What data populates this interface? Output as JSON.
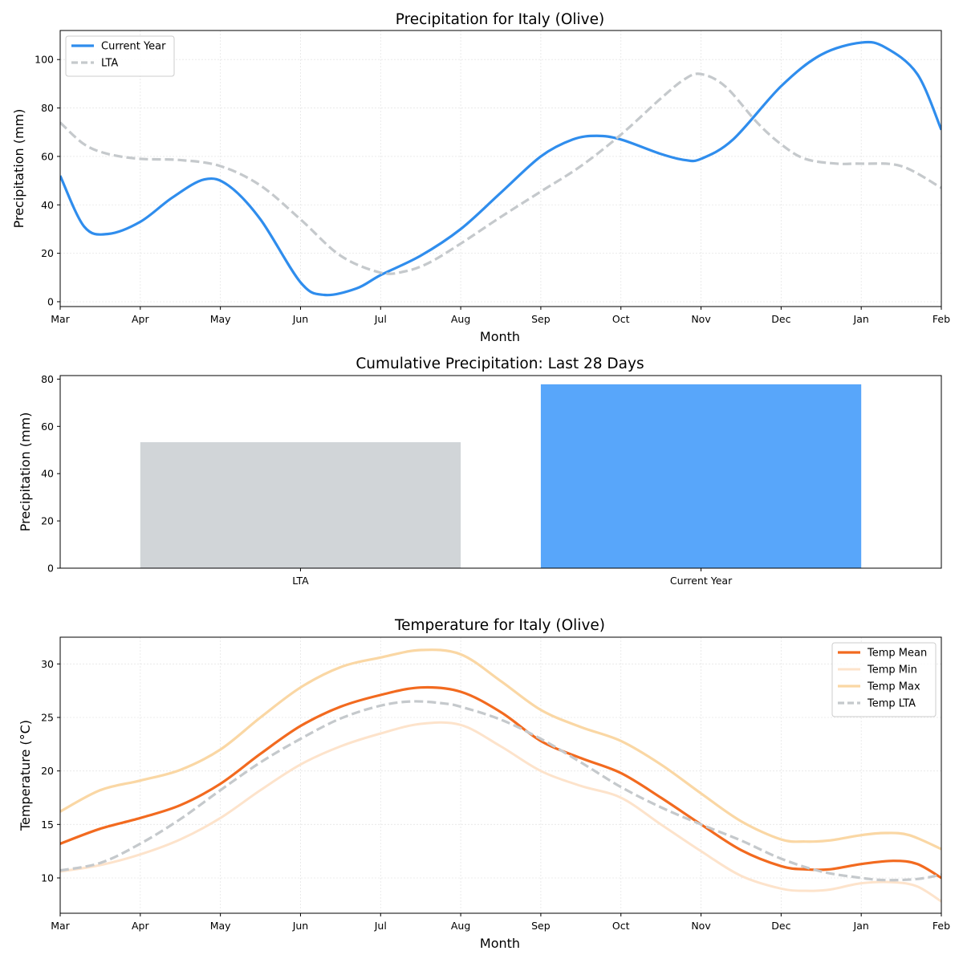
{
  "chart_data": [
    {
      "type": "line",
      "title": "Precipitation for Italy (Olive)",
      "xlabel": "Month",
      "ylabel": "Precipitation (mm)",
      "categories": [
        "Mar",
        "Apr",
        "May",
        "Jun",
        "Jul",
        "Aug",
        "Sep",
        "Oct",
        "Nov",
        "Dec",
        "Jan",
        "Feb"
      ],
      "xlim": [
        0,
        11
      ],
      "ylim": [
        -2,
        112
      ],
      "yticks": [
        0,
        20,
        40,
        60,
        80,
        100
      ],
      "grid": true,
      "legend": "top-left",
      "series": [
        {
          "name": "Current Year",
          "color": "#2f8ded",
          "dash": "solid",
          "points": [
            [
              0,
              52
            ],
            [
              0.3,
              31
            ],
            [
              0.6,
              28
            ],
            [
              1.0,
              33
            ],
            [
              1.4,
              43
            ],
            [
              1.8,
              50.5
            ],
            [
              2.1,
              48
            ],
            [
              2.5,
              34
            ],
            [
              3.0,
              8
            ],
            [
              3.3,
              2.8
            ],
            [
              3.7,
              5.5
            ],
            [
              4.0,
              11
            ],
            [
              4.5,
              19
            ],
            [
              5.0,
              30
            ],
            [
              5.5,
              45
            ],
            [
              6.0,
              60
            ],
            [
              6.4,
              67
            ],
            [
              6.7,
              68.5
            ],
            [
              7.0,
              67
            ],
            [
              7.5,
              61
            ],
            [
              7.8,
              58.5
            ],
            [
              8.0,
              59
            ],
            [
              8.4,
              67
            ],
            [
              9.0,
              89
            ],
            [
              9.5,
              102
            ],
            [
              10.0,
              107
            ],
            [
              10.3,
              105
            ],
            [
              10.7,
              94
            ],
            [
              11.0,
              71
            ]
          ]
        },
        {
          "name": "LTA",
          "color": "#c5c9cc",
          "dash": "dashed",
          "points": [
            [
              0,
              74
            ],
            [
              0.3,
              65
            ],
            [
              0.6,
              61
            ],
            [
              1.0,
              59
            ],
            [
              1.5,
              58.5
            ],
            [
              2.0,
              56
            ],
            [
              2.5,
              48
            ],
            [
              3.0,
              34
            ],
            [
              3.5,
              19
            ],
            [
              4.0,
              12
            ],
            [
              4.3,
              12.5
            ],
            [
              4.6,
              16
            ],
            [
              5.0,
              24
            ],
            [
              5.5,
              35
            ],
            [
              6.0,
              45.5
            ],
            [
              6.5,
              56
            ],
            [
              7.0,
              69
            ],
            [
              7.5,
              84
            ],
            [
              7.8,
              92
            ],
            [
              8.0,
              94
            ],
            [
              8.3,
              89
            ],
            [
              8.7,
              74
            ],
            [
              9.0,
              65
            ],
            [
              9.3,
              59
            ],
            [
              9.7,
              57
            ],
            [
              10.0,
              57
            ],
            [
              10.5,
              56
            ],
            [
              11.0,
              47
            ]
          ]
        }
      ]
    },
    {
      "type": "bar",
      "title": "Cumulative Precipitation: Last 28 Days",
      "xlabel": "",
      "ylabel": "Precipitation (mm)",
      "categories": [
        "LTA",
        "Current Year"
      ],
      "values": [
        53.3,
        77.8
      ],
      "colors": [
        "#d1d5d8",
        "#58a6fa"
      ],
      "ylim": [
        0,
        81.5
      ],
      "yticks": [
        0,
        20,
        40,
        60,
        80
      ]
    },
    {
      "type": "line",
      "title": "Temperature for Italy (Olive)",
      "xlabel": "Month",
      "ylabel": "Temperature (°C)",
      "categories": [
        "Mar",
        "Apr",
        "May",
        "Jun",
        "Jul",
        "Aug",
        "Sep",
        "Oct",
        "Nov",
        "Dec",
        "Jan",
        "Feb"
      ],
      "xlim": [
        0,
        11
      ],
      "ylim": [
        6.7,
        32.5
      ],
      "yticks": [
        10,
        15,
        20,
        25,
        30
      ],
      "grid": true,
      "legend": "top-right",
      "series": [
        {
          "name": "Temp Mean",
          "color": "#f26a1f",
          "dash": "solid",
          "width": 3.2,
          "points": [
            [
              0,
              13.2
            ],
            [
              0.5,
              14.6
            ],
            [
              1.0,
              15.6
            ],
            [
              1.5,
              16.8
            ],
            [
              2.0,
              18.8
            ],
            [
              2.5,
              21.6
            ],
            [
              3.0,
              24.2
            ],
            [
              3.5,
              26.0
            ],
            [
              4.0,
              27.1
            ],
            [
              4.5,
              27.8
            ],
            [
              5.0,
              27.4
            ],
            [
              5.5,
              25.5
            ],
            [
              6.0,
              22.8
            ],
            [
              6.5,
              21.2
            ],
            [
              7.0,
              19.8
            ],
            [
              7.5,
              17.5
            ],
            [
              8.0,
              15.0
            ],
            [
              8.5,
              12.6
            ],
            [
              9.0,
              11.1
            ],
            [
              9.3,
              10.8
            ],
            [
              9.6,
              10.8
            ],
            [
              10.0,
              11.3
            ],
            [
              10.4,
              11.6
            ],
            [
              10.7,
              11.3
            ],
            [
              11.0,
              10.0
            ]
          ]
        },
        {
          "name": "Temp Min",
          "color": "#fde3cb",
          "dash": "solid",
          "width": 3,
          "points": [
            [
              0,
              10.6
            ],
            [
              0.5,
              11.2
            ],
            [
              1.0,
              12.2
            ],
            [
              1.5,
              13.6
            ],
            [
              2.0,
              15.6
            ],
            [
              2.5,
              18.2
            ],
            [
              3.0,
              20.6
            ],
            [
              3.5,
              22.3
            ],
            [
              4.0,
              23.5
            ],
            [
              4.5,
              24.4
            ],
            [
              5.0,
              24.3
            ],
            [
              5.5,
              22.3
            ],
            [
              6.0,
              20.0
            ],
            [
              6.5,
              18.6
            ],
            [
              7.0,
              17.5
            ],
            [
              7.5,
              15.0
            ],
            [
              8.0,
              12.5
            ],
            [
              8.5,
              10.2
            ],
            [
              9.0,
              9.0
            ],
            [
              9.3,
              8.8
            ],
            [
              9.6,
              8.9
            ],
            [
              10.0,
              9.5
            ],
            [
              10.4,
              9.6
            ],
            [
              10.7,
              9.2
            ],
            [
              11.0,
              7.8
            ]
          ]
        },
        {
          "name": "Temp Max",
          "color": "#fad7a4",
          "dash": "solid",
          "width": 3.2,
          "points": [
            [
              0,
              16.2
            ],
            [
              0.5,
              18.2
            ],
            [
              1.0,
              19.1
            ],
            [
              1.5,
              20.1
            ],
            [
              2.0,
              22.0
            ],
            [
              2.5,
              25.0
            ],
            [
              3.0,
              27.8
            ],
            [
              3.5,
              29.7
            ],
            [
              4.0,
              30.6
            ],
            [
              4.5,
              31.3
            ],
            [
              5.0,
              30.9
            ],
            [
              5.5,
              28.4
            ],
            [
              6.0,
              25.7
            ],
            [
              6.5,
              24.1
            ],
            [
              7.0,
              22.8
            ],
            [
              7.5,
              20.6
            ],
            [
              8.0,
              17.9
            ],
            [
              8.5,
              15.3
            ],
            [
              9.0,
              13.6
            ],
            [
              9.3,
              13.4
            ],
            [
              9.6,
              13.5
            ],
            [
              10.0,
              14.0
            ],
            [
              10.3,
              14.2
            ],
            [
              10.6,
              14.0
            ],
            [
              11.0,
              12.7
            ]
          ]
        },
        {
          "name": "Temp LTA",
          "color": "#c5c9cc",
          "dash": "dashed",
          "width": 3.2,
          "points": [
            [
              0,
              10.7
            ],
            [
              0.5,
              11.4
            ],
            [
              1.0,
              13.2
            ],
            [
              1.5,
              15.5
            ],
            [
              2.0,
              18.2
            ],
            [
              2.5,
              20.8
            ],
            [
              3.0,
              23.0
            ],
            [
              3.5,
              24.9
            ],
            [
              4.0,
              26.1
            ],
            [
              4.4,
              26.5
            ],
            [
              4.8,
              26.3
            ],
            [
              5.0,
              26.0
            ],
            [
              5.5,
              24.8
            ],
            [
              6.0,
              23.0
            ],
            [
              6.5,
              20.8
            ],
            [
              7.0,
              18.5
            ],
            [
              7.5,
              16.6
            ],
            [
              8.0,
              15.0
            ],
            [
              8.5,
              13.5
            ],
            [
              9.0,
              11.8
            ],
            [
              9.5,
              10.6
            ],
            [
              10.0,
              10.0
            ],
            [
              10.3,
              9.8
            ],
            [
              10.7,
              9.9
            ],
            [
              11.0,
              10.3
            ]
          ]
        }
      ]
    }
  ]
}
